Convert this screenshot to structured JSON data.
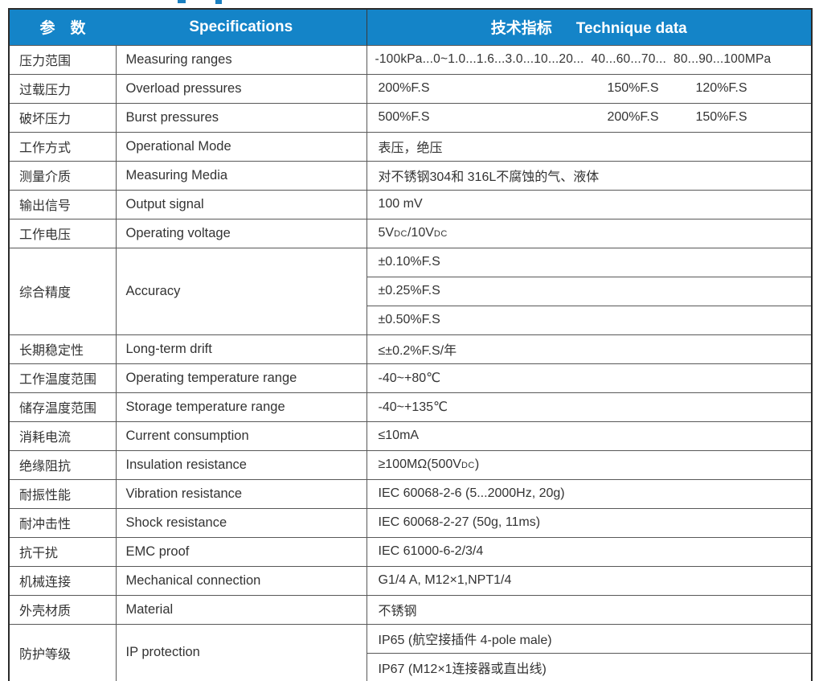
{
  "header": {
    "param": "参　数",
    "spec": "Specifications",
    "tech_cn": "技术指标",
    "tech_en": "Technique data"
  },
  "colors": {
    "header_blue": "#1484c8",
    "border_dark": "#2b2b2b",
    "border_inner": "#585858",
    "text": "#333333"
  },
  "rows": {
    "ranges": {
      "param": "压力范围",
      "spec": "Measuring ranges",
      "value": "-100kPa...0~1.0...1.6...3.0...10...20...  40...60...70...  80...90...100MPa"
    },
    "overload": {
      "param": "过载压力",
      "spec": "Overload pressures",
      "v1": "200%F.S",
      "v2": "150%F.S",
      "v3": "120%F.S"
    },
    "burst": {
      "param": "破坏压力",
      "spec": "Burst pressures",
      "v1": "500%F.S",
      "v2": "200%F.S",
      "v3": "150%F.S"
    },
    "mode": {
      "param": "工作方式",
      "spec": "Operational Mode",
      "value": "表压，绝压"
    },
    "media": {
      "param": "测量介质",
      "spec": "Measuring Media",
      "value": "对不锈钢304和 316L不腐蚀的气、液体"
    },
    "output": {
      "param": "输出信号",
      "spec": "Output signal",
      "value": "100 mV"
    },
    "voltage": {
      "param": "工作电压",
      "spec": "Operating voltage",
      "v1": "5V",
      "sub1": "DC",
      "v2": "/10V",
      "sub2": "DC"
    },
    "accuracy": {
      "param": "综合精度",
      "spec": "Accuracy",
      "v1": "±0.10%F.S",
      "v2": "±0.25%F.S",
      "v3": "±0.50%F.S"
    },
    "drift": {
      "param": "长期稳定性",
      "spec": "Long-term drift",
      "value": "≤±0.2%F.S/年"
    },
    "op_temp": {
      "param": "工作温度范围",
      "spec": "Operating temperature range",
      "value": "-40~+80℃"
    },
    "storage_temp": {
      "param": "储存温度范围",
      "spec": "Storage temperature range",
      "value": "-40~+135℃"
    },
    "current": {
      "param": "消耗电流",
      "spec": "Current consumption",
      "value": "≤10mA"
    },
    "insulation": {
      "param": "绝缘阻抗",
      "spec": "Insulation resistance",
      "v1": "≥100MΩ(500V",
      "sub1": "DC",
      "v2": ")"
    },
    "vibration": {
      "param": "耐振性能",
      "spec": "Vibration resistance",
      "value": "IEC 60068-2-6 (5...2000Hz, 20g)"
    },
    "shock": {
      "param": "耐冲击性",
      "spec": "Shock resistance",
      "value": "IEC 60068-2-27 (50g, 11ms)"
    },
    "emc": {
      "param": "抗干扰",
      "spec": "EMC proof",
      "value": "IEC 61000-6-2/3/4"
    },
    "mechanical": {
      "param": "机械连接",
      "spec": "Mechanical connection",
      "value": "G1/4 A, M12×1,NPT1/4"
    },
    "material": {
      "param": "外壳材质",
      "spec": "Material",
      "value": "不锈钢"
    },
    "ip": {
      "param": "防护等级",
      "spec": "IP protection",
      "v1": "IP65 (航空接插件 4-pole male)",
      "v2": "IP67 (M12×1连接器或直出线)"
    }
  }
}
